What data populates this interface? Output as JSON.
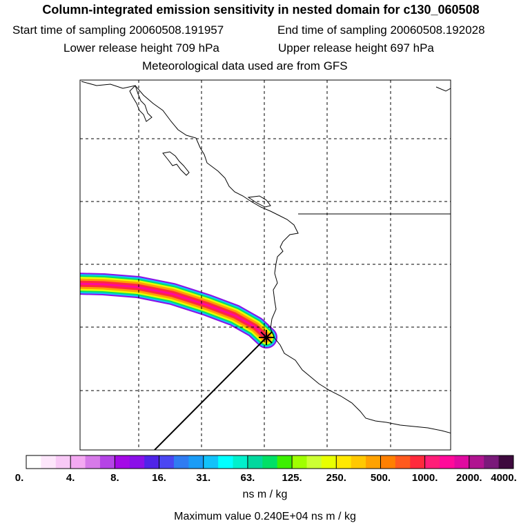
{
  "header": {
    "title": "Column-integrated emission sensitivity in nested domain for c130_060508",
    "start_time": "Start time of sampling 20060508.191957",
    "end_time": "End time of sampling 20060508.192028",
    "lower_release": "Lower release height  709 hPa",
    "upper_release": "Upper release height  697 hPa",
    "met_data": "Meteorological data used are from GFS"
  },
  "colorbar": {
    "colors": [
      "#ffffff",
      "#fde6fb",
      "#f8c9f6",
      "#f4a9f2",
      "#d67ae8",
      "#b544e6",
      "#a40ae6",
      "#8a10e8",
      "#4f24e8",
      "#4a46f2",
      "#2f7cf2",
      "#1a9cf6",
      "#12c2fa",
      "#00ffff",
      "#00f0cc",
      "#00d89e",
      "#00e066",
      "#3cf000",
      "#a0ff00",
      "#ccff33",
      "#e8ff00",
      "#ffe800",
      "#ffc800",
      "#ffa200",
      "#ff8000",
      "#ff5a1e",
      "#ff2a3c",
      "#ff1e78",
      "#ff0a9a",
      "#e00aa0",
      "#b01490",
      "#7a1a7a",
      "#3e0a3e"
    ],
    "tick_labels": [
      "0.",
      "4.",
      "8.",
      "16.",
      "31.",
      "63.",
      "125.",
      "250.",
      "500.",
      "1000.",
      "2000.",
      "4000."
    ],
    "units": "ns m / kg"
  },
  "footer": {
    "max_value": "Maximum value  0.240E+04 ns m / kg"
  },
  "map": {
    "release_marker": "release-point-star-icon"
  }
}
